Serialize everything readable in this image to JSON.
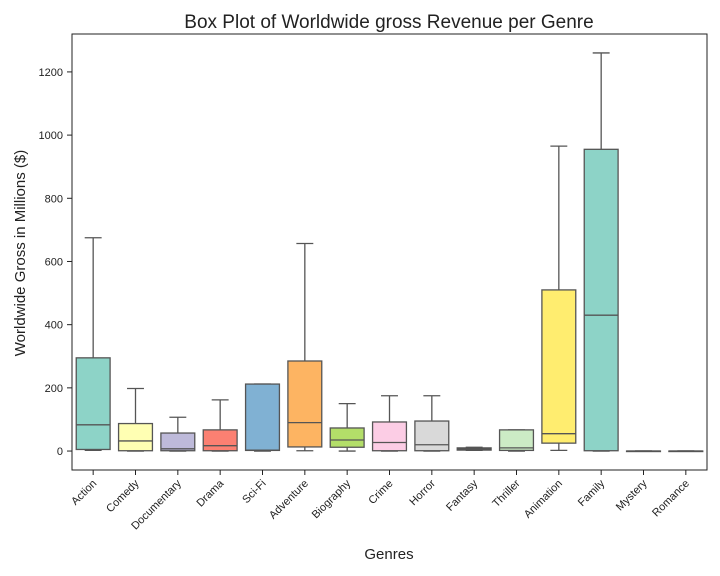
{
  "chart_data": {
    "type": "box",
    "title": "Box Plot of Worldwide gross Revenue per Genre",
    "xlabel": "Genres",
    "ylabel": "Worldwide Gross in Millions ($)",
    "ylim": [
      -60,
      1320
    ],
    "yticks": [
      0,
      200,
      400,
      600,
      800,
      1000,
      1200
    ],
    "grid": false,
    "legend": "none",
    "boxes": [
      {
        "category": "Action",
        "whisker_low": 2,
        "q1": 5,
        "median": 83,
        "q3": 295,
        "whisker_high": 675,
        "color": "#8dd3c7"
      },
      {
        "category": "Comedy",
        "whisker_low": 0,
        "q1": 1,
        "median": 32,
        "q3": 87,
        "whisker_high": 198,
        "color": "#ffffb3"
      },
      {
        "category": "Documentary",
        "whisker_low": 0,
        "q1": 1,
        "median": 7,
        "q3": 57,
        "whisker_high": 107,
        "color": "#bebada"
      },
      {
        "category": "Drama",
        "whisker_low": 0,
        "q1": 1,
        "median": 17,
        "q3": 67,
        "whisker_high": 162,
        "color": "#fb8072"
      },
      {
        "category": "Sci-Fi",
        "whisker_low": 0,
        "q1": 2,
        "median": 3,
        "q3": 212,
        "whisker_high": 212,
        "color": "#80b1d3"
      },
      {
        "category": "Adventure",
        "whisker_low": 1,
        "q1": 13,
        "median": 90,
        "q3": 285,
        "whisker_high": 657,
        "color": "#fdb462"
      },
      {
        "category": "Biography",
        "whisker_low": 0,
        "q1": 12,
        "median": 35,
        "q3": 73,
        "whisker_high": 150,
        "color": "#b3de69"
      },
      {
        "category": "Crime",
        "whisker_low": 0,
        "q1": 1,
        "median": 27,
        "q3": 92,
        "whisker_high": 175,
        "color": "#fccde5"
      },
      {
        "category": "Horror",
        "whisker_low": 0,
        "q1": 1,
        "median": 20,
        "q3": 95,
        "whisker_high": 175,
        "color": "#d9d9d9"
      },
      {
        "category": "Fantasy",
        "whisker_low": 2,
        "q1": 3,
        "median": 7,
        "q3": 10,
        "whisker_high": 12,
        "color": "#bc80bd"
      },
      {
        "category": "Thriller",
        "whisker_low": 0,
        "q1": 2,
        "median": 10,
        "q3": 67,
        "whisker_high": 67,
        "color": "#ccebc5"
      },
      {
        "category": "Animation",
        "whisker_low": 2,
        "q1": 25,
        "median": 55,
        "q3": 510,
        "whisker_high": 965,
        "color": "#ffed6f"
      },
      {
        "category": "Family",
        "whisker_low": 0,
        "q1": 1,
        "median": 430,
        "q3": 955,
        "whisker_high": 1260,
        "color": "#8dd3c7"
      },
      {
        "category": "Mystery",
        "whisker_low": 0,
        "q1": 0,
        "median": 0,
        "q3": 0,
        "whisker_high": 0,
        "color": "#ffffb3"
      },
      {
        "category": "Romance",
        "whisker_low": 0,
        "q1": 0,
        "median": 0,
        "q3": 0,
        "whisker_high": 0,
        "color": "#bebada"
      }
    ]
  }
}
